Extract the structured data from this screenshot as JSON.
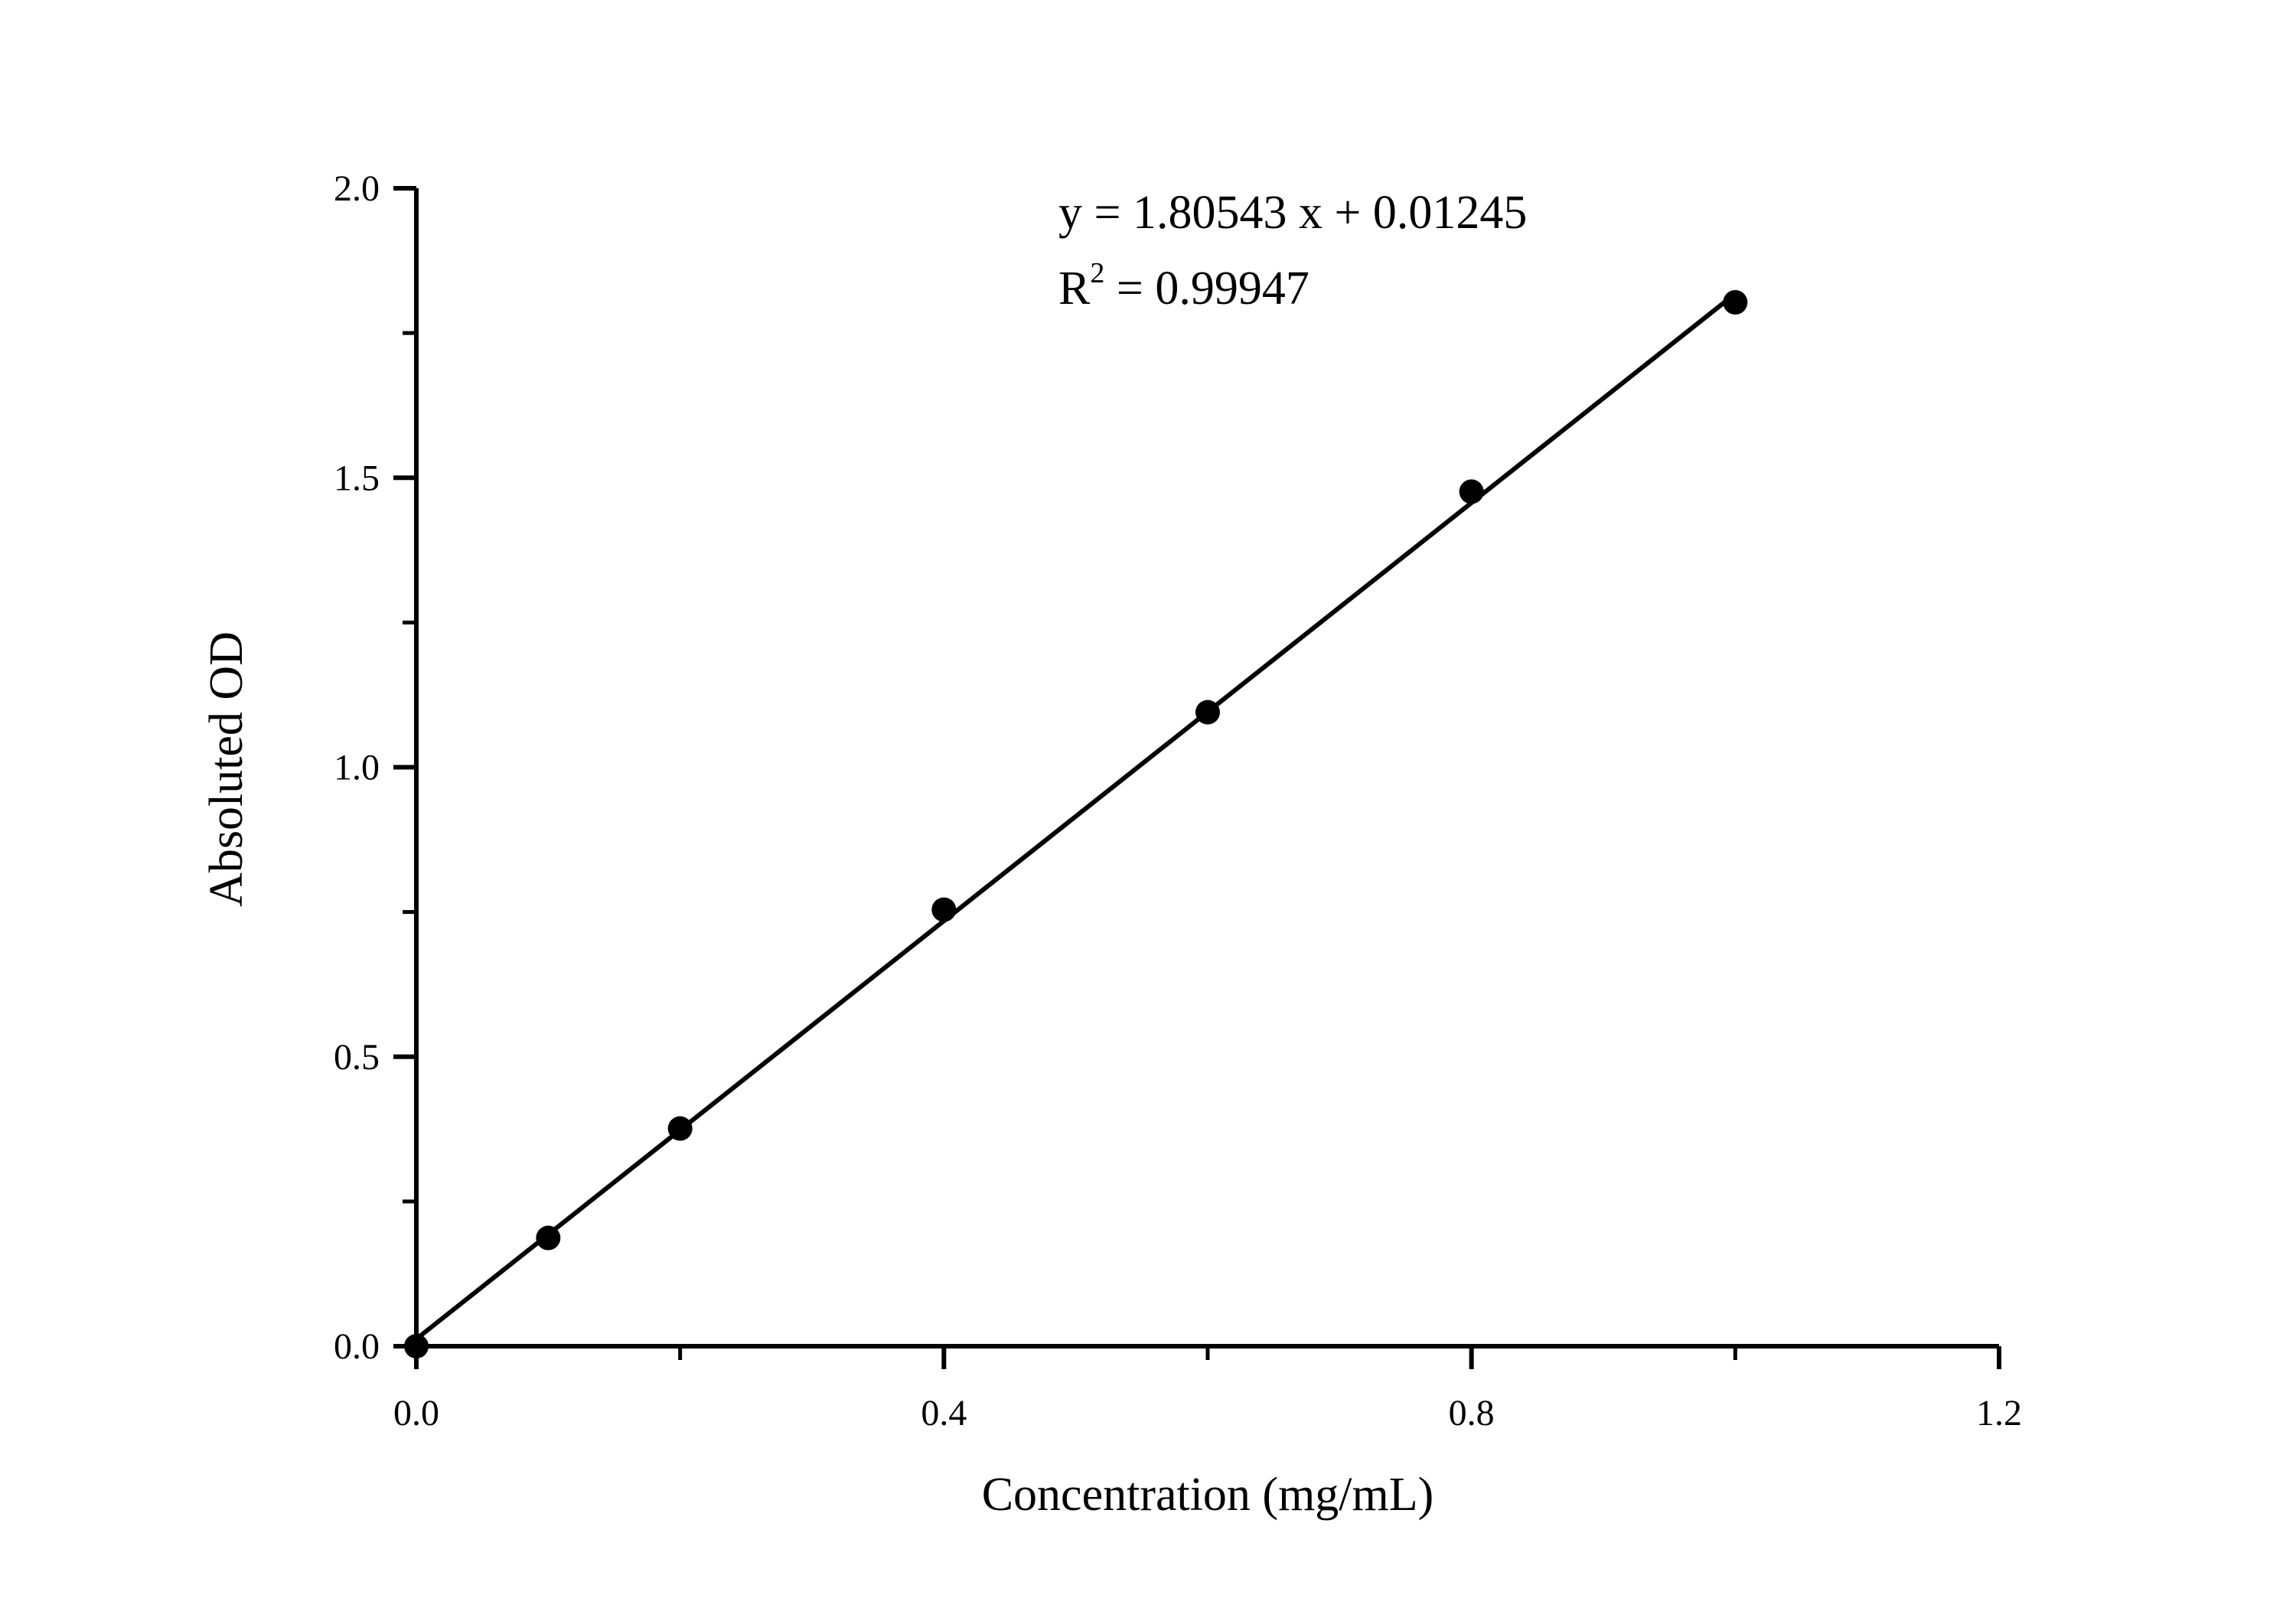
{
  "chart_data": {
    "type": "scatter",
    "xlabel": "Concentration (mg/mL)",
    "ylabel": "Absoluted OD",
    "xlim": [
      0,
      1.2
    ],
    "ylim": [
      0,
      2.0
    ],
    "x_ticks": [
      "0.0",
      "0.4",
      "0.8",
      "1.2"
    ],
    "y_ticks": [
      "0.0",
      "0.5",
      "1.0",
      "1.5",
      "2.0"
    ],
    "grid": false,
    "series": [
      {
        "x": [
          0.0,
          0.1,
          0.2,
          0.4,
          0.6,
          0.8,
          1.0
        ],
        "y": [
          0.0,
          0.187,
          0.376,
          0.754,
          1.095,
          1.476,
          1.803
        ],
        "color": "#000000"
      }
    ],
    "fit": {
      "slope": 1.80543,
      "intercept": 0.01245,
      "x_range": [
        0,
        1.0
      ]
    },
    "annotations": {
      "equation": "y = 1.80543 x + 0.01245",
      "r2_prefix": "R",
      "r2_sup": "2",
      "r2_value": " = 0.99947"
    }
  }
}
